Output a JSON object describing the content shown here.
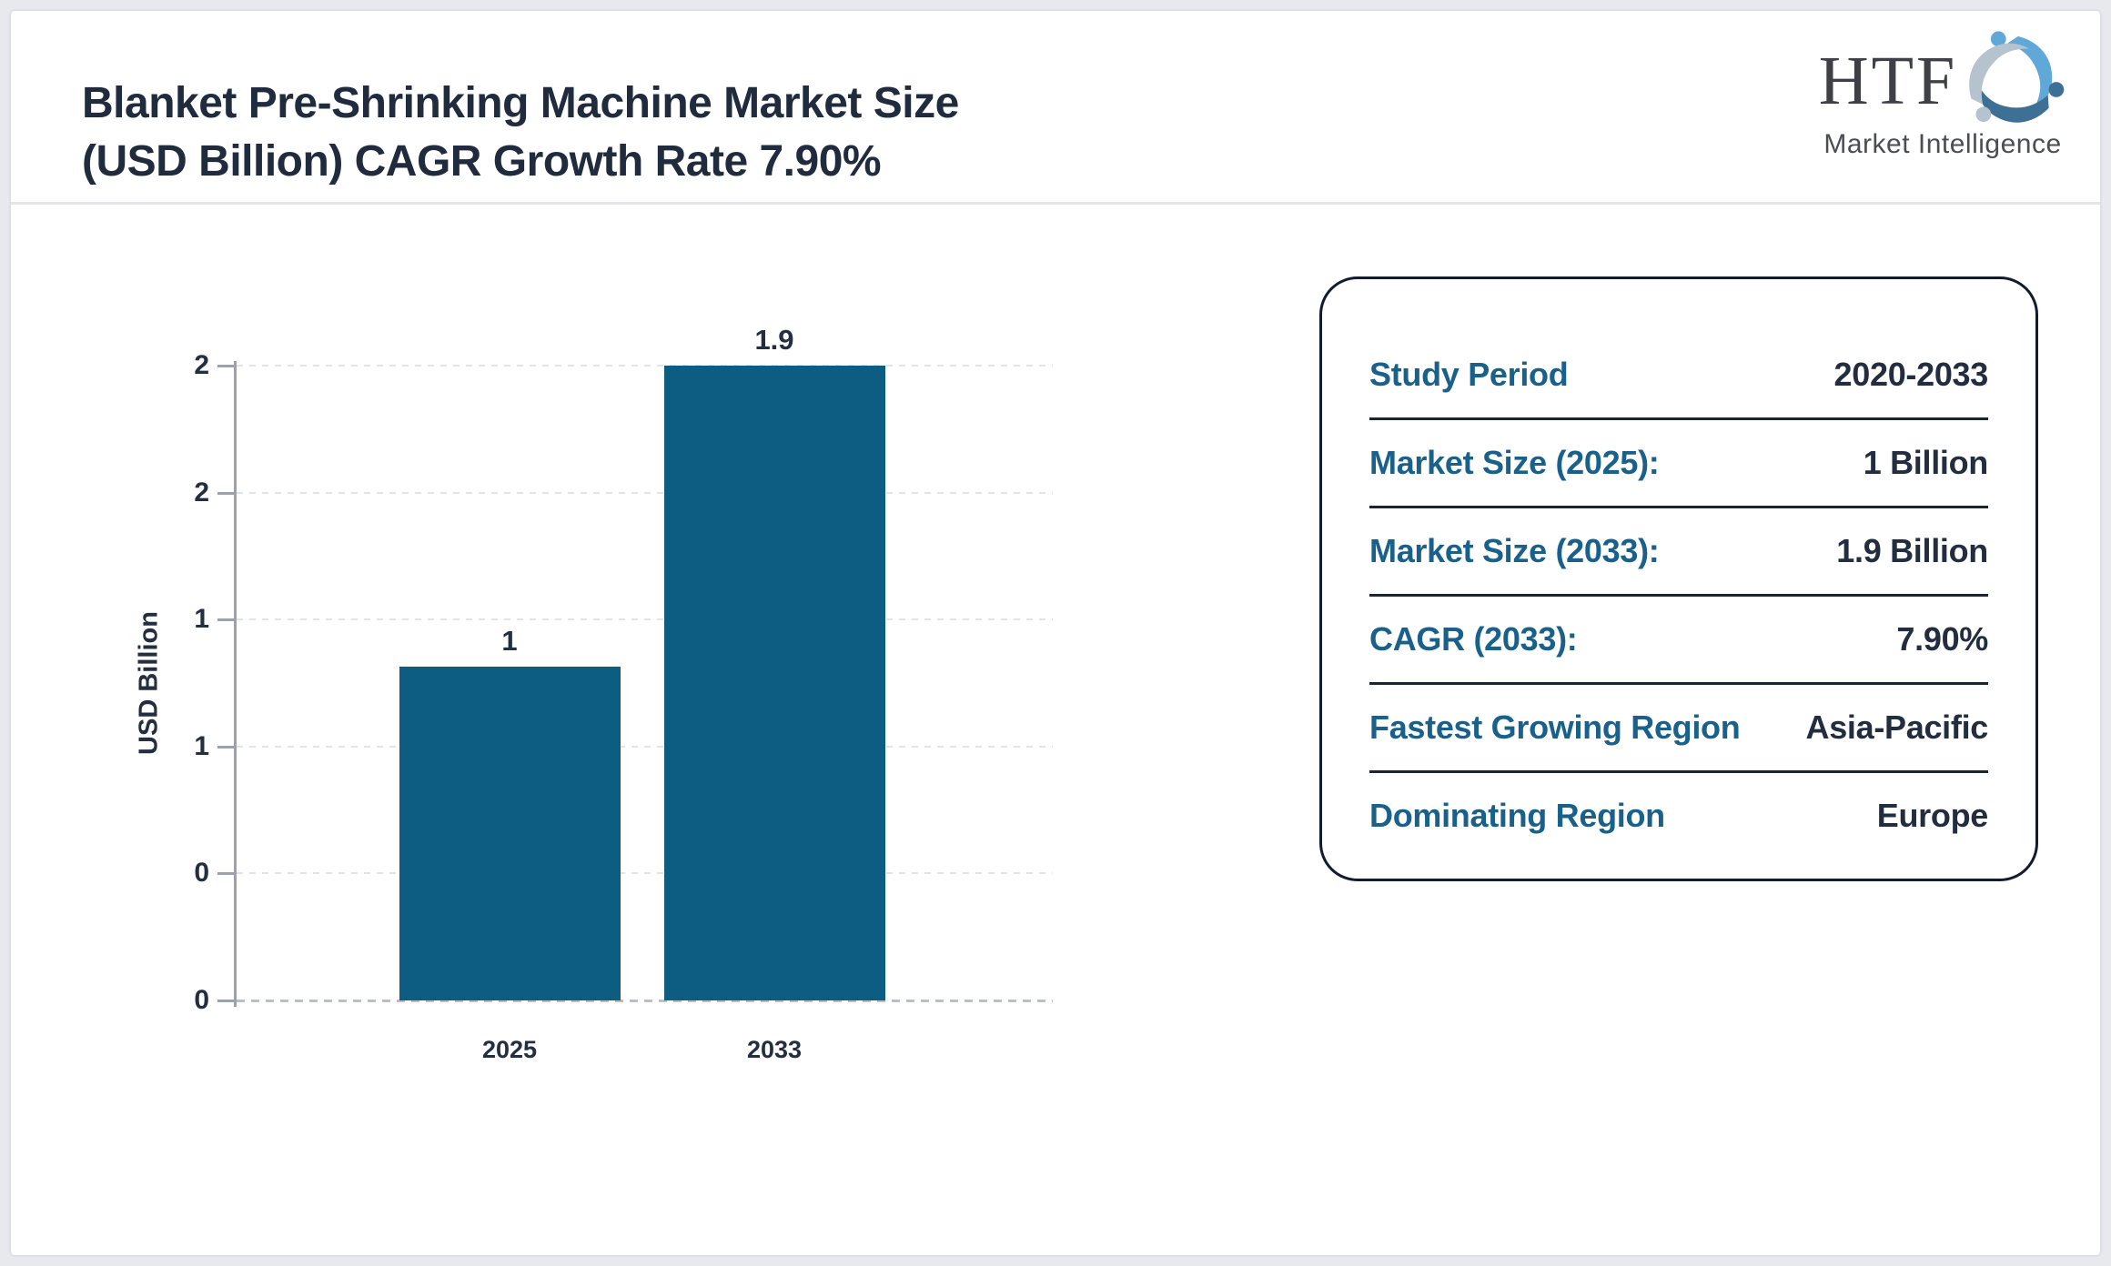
{
  "header": {
    "title_line1": "Blanket Pre-Shrinking Machine Market Size",
    "title_line2": "(USD Billion) CAGR Growth Rate 7.90%",
    "logo": {
      "text": "HTF",
      "subtext": "Market Intelligence"
    }
  },
  "chart_data": {
    "type": "bar",
    "categories": [
      "2025",
      "2033"
    ],
    "values": [
      1,
      1.9
    ],
    "bar_labels": [
      "1",
      "1.9"
    ],
    "title": "",
    "xlabel": "",
    "ylabel": "USD Billion",
    "ylim": [
      0,
      1.9
    ],
    "yticks": {
      "values": [
        1.9,
        1.52,
        1.14,
        0.76,
        0.38,
        0
      ],
      "labels": [
        "2",
        "2",
        "1",
        "1",
        "0",
        "0"
      ]
    },
    "grid": "horizontal-dotted",
    "legend": "none",
    "bar_color": "#0d5c82"
  },
  "info_panel": {
    "rows": [
      {
        "label": "Study Period",
        "value": "2020-2033"
      },
      {
        "label": "Market Size (2025):",
        "value": "1 Billion"
      },
      {
        "label": "Market Size (2033):",
        "value": "1.9 Billion"
      },
      {
        "label": "CAGR (2033):",
        "value": "7.90%"
      },
      {
        "label": "Fastest Growing Region",
        "value": "Asia-Pacific"
      },
      {
        "label": "Dominating Region",
        "value": "Europe"
      }
    ]
  },
  "colors": {
    "bar": "#0d5c82",
    "accent_teal": "#19618a",
    "navy_text": "#222d3f",
    "axis_gray": "#9aa2ad",
    "grid_gray": "#e3e4e8",
    "panel_border": "#111c2c",
    "page_background": "#e8e9ed",
    "logo_light_blue": "#5fa8d8",
    "logo_steel_blue": "#3e7096",
    "logo_gray_blue": "#b5c3ce"
  }
}
